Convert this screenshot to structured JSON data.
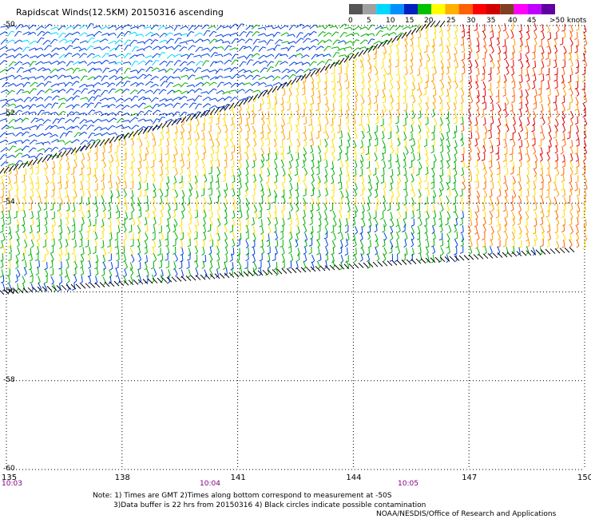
{
  "title": "Rapidscat Winds(12.5KM) 20150316 ascending",
  "color_scale": {
    "bins": [
      "#555555",
      "#a0a0a0",
      "#00d8ff",
      "#0090ff",
      "#0020c0",
      "#00c000",
      "#ffff00",
      "#ffb000",
      "#ff6000",
      "#ff0000",
      "#d00000",
      "#804020",
      "#ff00ff",
      "#c000ff",
      "#6000a0"
    ],
    "labels": [
      "0",
      "5",
      "10",
      "15",
      "20",
      "25",
      "30",
      "35",
      "40",
      "45",
      ">50 knots"
    ]
  },
  "latitude_labels": [
    "-50",
    "-52",
    "-54",
    "-56",
    "-58",
    "-60"
  ],
  "longitude_labels": [
    "135",
    "138",
    "141",
    "144",
    "147",
    "150"
  ],
  "time_labels": [
    "10:03",
    "10:04",
    "10:05"
  ],
  "notes": [
    "Note: 1) Times are GMT 2)Times along bottom correspond to measurement at -50S",
    "3)Data buffer is 22 hrs from 20150316 4) Black circles indicate possible contamination",
    "NOAA/NESDIS/Office of Research and Applications"
  ],
  "map": {
    "lat_range": [
      -60,
      -50
    ],
    "lon_range": [
      135,
      150
    ],
    "lat_step": 2,
    "lon_step": 3,
    "gridlines": "dotted"
  }
}
